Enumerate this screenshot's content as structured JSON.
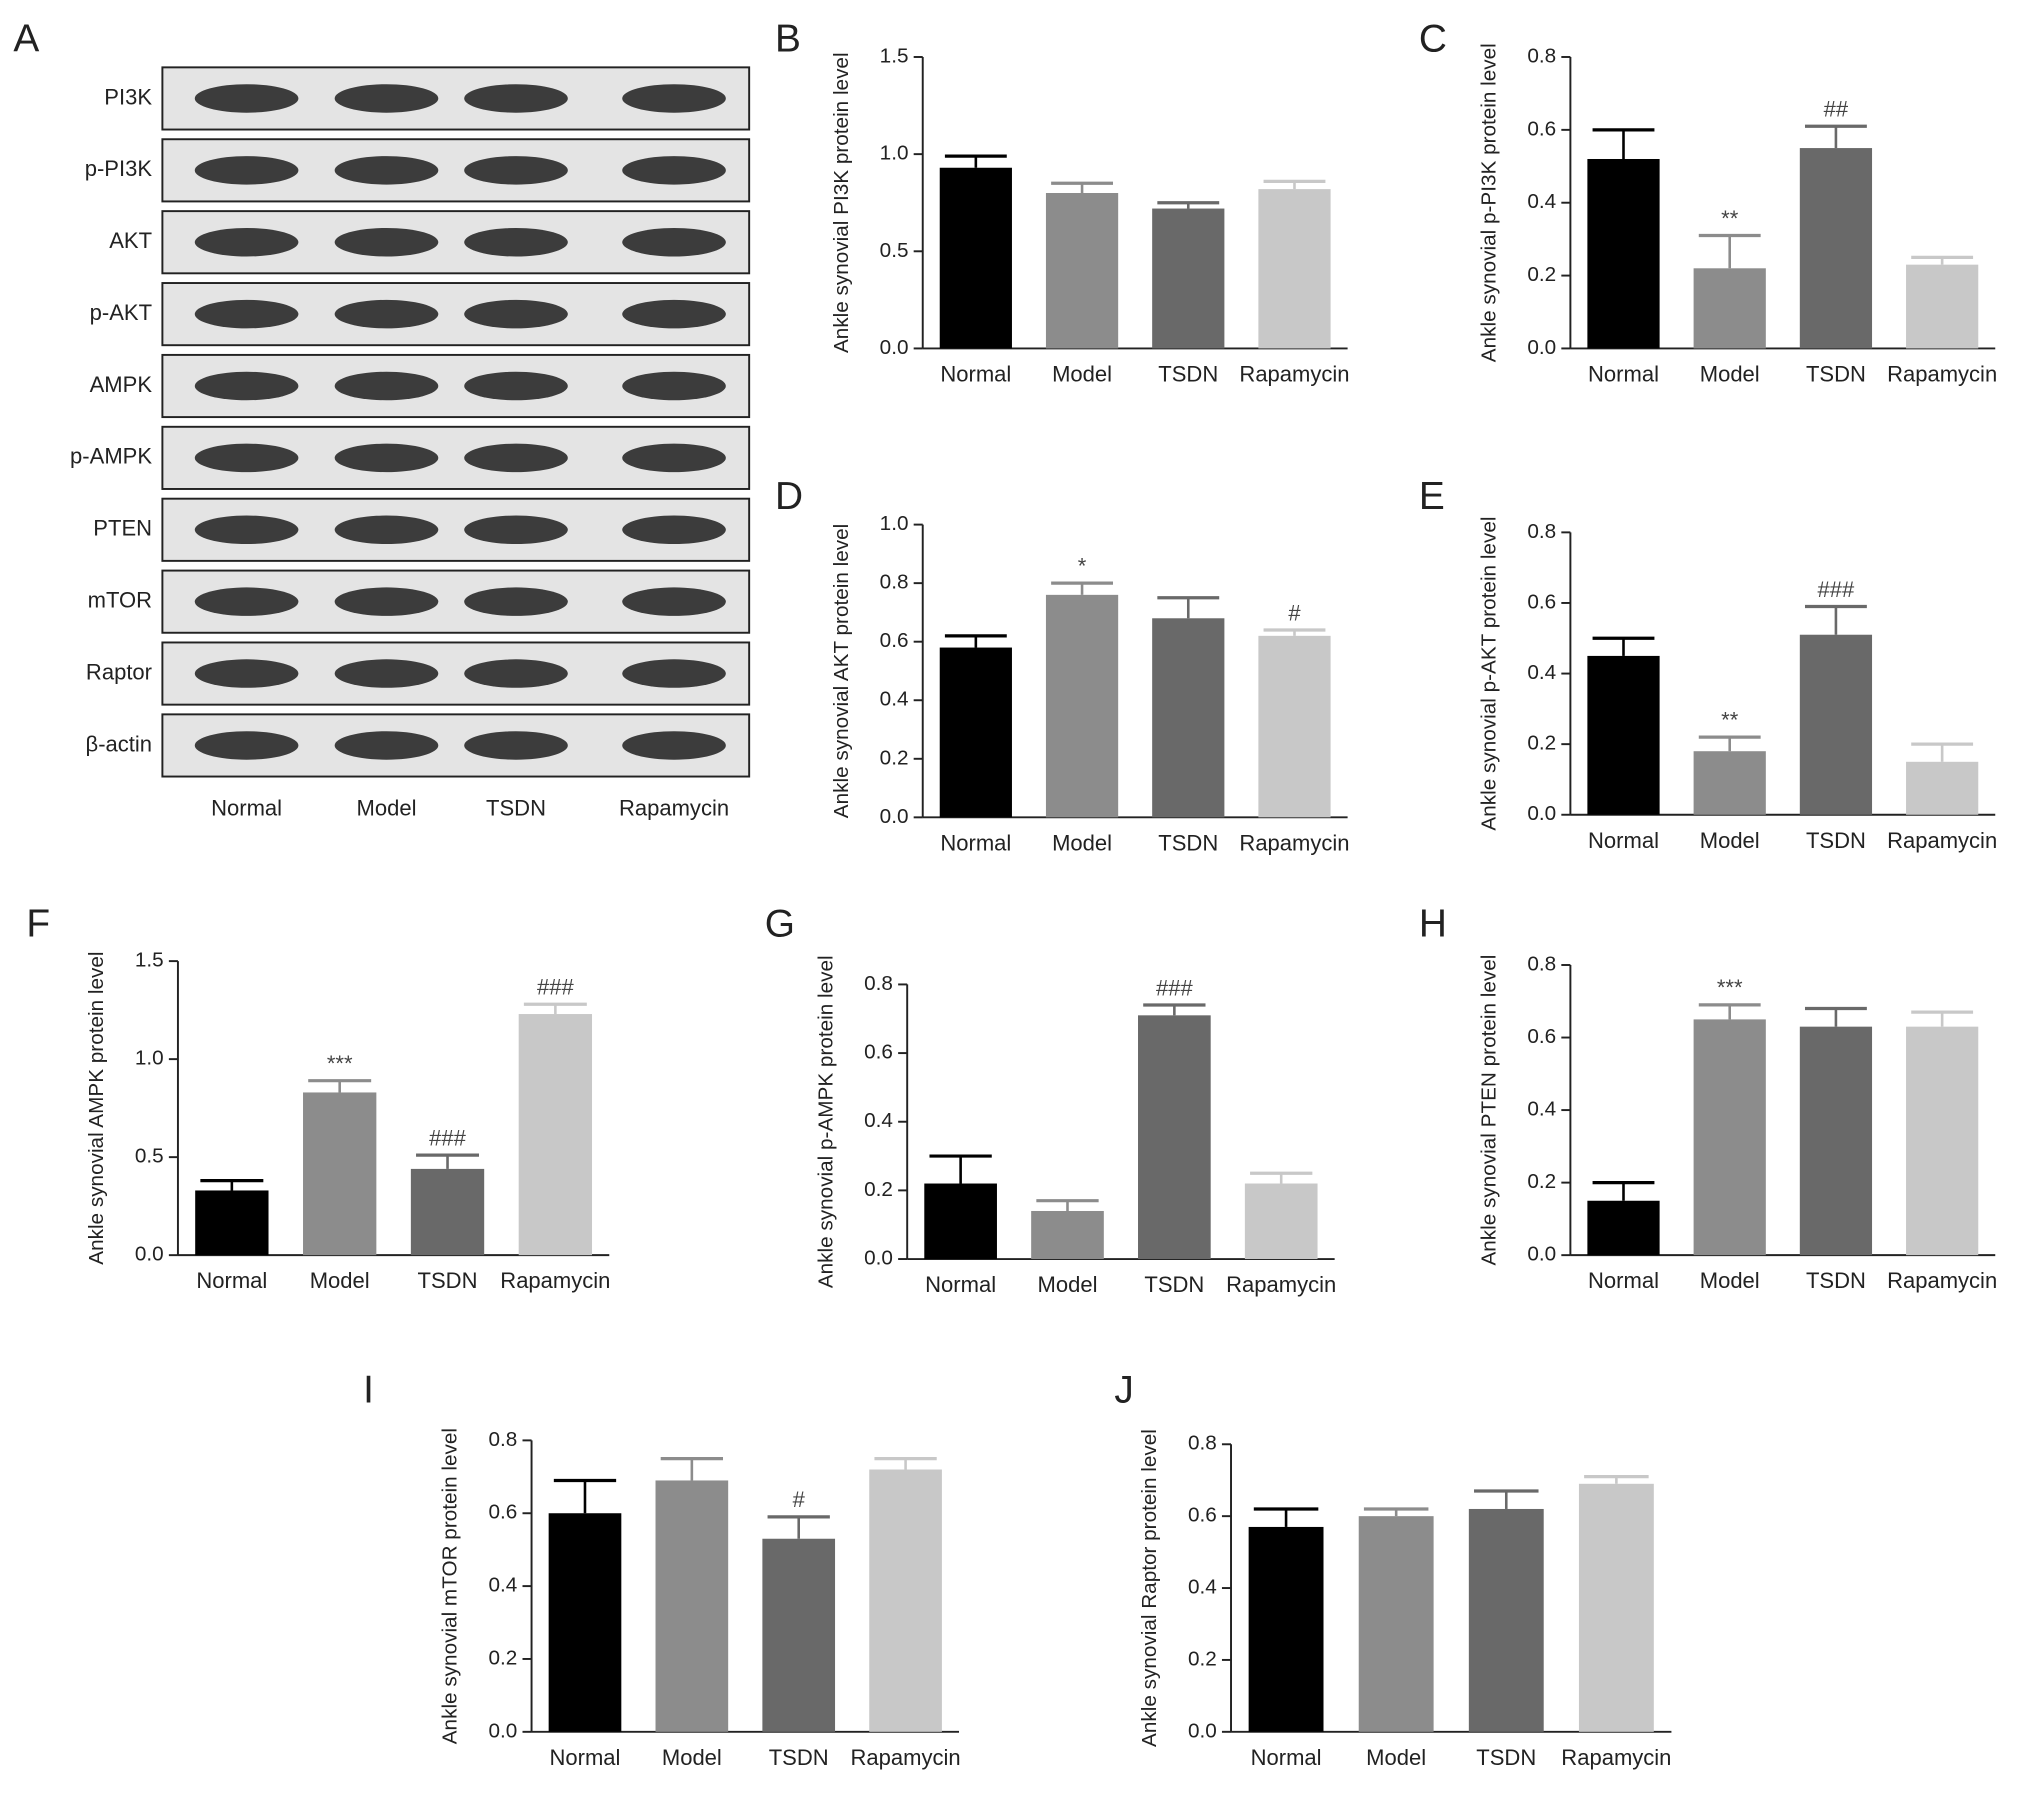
{
  "blot": {
    "panel_label": "A",
    "rows": [
      "PI3K",
      "p-PI3K",
      "AKT",
      "p-AKT",
      "AMPK",
      "p-AMPK",
      "PTEN",
      "mTOR",
      "Raptor",
      "β-actin"
    ],
    "columns": [
      "Normal",
      "Model",
      "TSDN",
      "Rapamycin"
    ]
  },
  "chart_data": [
    {
      "type": "bar",
      "panel_label": "B",
      "ylabel": "Ankle synovial PI3K protein level",
      "categories": [
        "Normal",
        "Model",
        "TSDN",
        "Rapamycin"
      ],
      "colors": [
        "#000000",
        "#8c8c8c",
        "#696969",
        "#c8c8c8"
      ],
      "values": [
        0.93,
        0.8,
        0.72,
        0.82
      ],
      "errors": [
        0.06,
        0.05,
        0.03,
        0.04
      ],
      "annotations": [
        null,
        null,
        null,
        null
      ],
      "ylim": [
        0,
        1.5
      ],
      "yticks": [
        {
          "value": 0,
          "label": "0.0"
        },
        0.5,
        {
          "value": 1,
          "label": "1.0"
        },
        1.5
      ]
    },
    {
      "type": "bar",
      "panel_label": "C",
      "ylabel": "Ankle synovial p-PI3K protein level",
      "categories": [
        "Normal",
        "Model",
        "TSDN",
        "Rapamycin"
      ],
      "colors": [
        "#000000",
        "#8c8c8c",
        "#696969",
        "#c8c8c8"
      ],
      "values": [
        0.52,
        0.22,
        0.55,
        0.23
      ],
      "errors": [
        0.08,
        0.09,
        0.06,
        0.02
      ],
      "annotations": [
        null,
        "**",
        "##",
        null
      ],
      "ylim": [
        0,
        0.8
      ],
      "yticks": [
        {
          "value": 0,
          "label": "0.0"
        },
        0.2,
        0.4,
        0.6,
        0.8
      ]
    },
    {
      "type": "bar",
      "panel_label": "D",
      "ylabel": "Ankle synovial AKT protein level",
      "categories": [
        "Normal",
        "Model",
        "TSDN",
        "Rapamycin"
      ],
      "colors": [
        "#000000",
        "#8c8c8c",
        "#696969",
        "#c8c8c8"
      ],
      "values": [
        0.58,
        0.76,
        0.68,
        0.62
      ],
      "errors": [
        0.04,
        0.04,
        0.07,
        0.02
      ],
      "annotations": [
        null,
        "*",
        null,
        "#"
      ],
      "ylim": [
        0,
        1
      ],
      "yticks": [
        {
          "value": 0,
          "label": "0.0"
        },
        0.2,
        0.4,
        0.6,
        0.8,
        {
          "value": 1,
          "label": "1.0"
        }
      ]
    },
    {
      "type": "bar",
      "panel_label": "E",
      "ylabel": "Ankle synovial p-AKT protein level",
      "categories": [
        "Normal",
        "Model",
        "TSDN",
        "Rapamycin"
      ],
      "colors": [
        "#000000",
        "#8c8c8c",
        "#696969",
        "#c8c8c8"
      ],
      "values": [
        0.45,
        0.18,
        0.51,
        0.15
      ],
      "errors": [
        0.05,
        0.04,
        0.08,
        0.05
      ],
      "annotations": [
        null,
        "**",
        "###",
        null
      ],
      "ylim": [
        0,
        0.8
      ],
      "yticks": [
        {
          "value": 0,
          "label": "0.0"
        },
        0.2,
        0.4,
        0.6,
        0.8
      ]
    },
    {
      "type": "bar",
      "panel_label": "F",
      "ylabel": "Ankle synovial AMPK protein level",
      "categories": [
        "Normal",
        "Model",
        "TSDN",
        "Rapamycin"
      ],
      "colors": [
        "#000000",
        "#8c8c8c",
        "#696969",
        "#c8c8c8"
      ],
      "values": [
        0.33,
        0.83,
        0.44,
        1.23
      ],
      "errors": [
        0.05,
        0.06,
        0.07,
        0.05
      ],
      "annotations": [
        null,
        "***",
        "###",
        "###"
      ],
      "ylim": [
        0,
        1.5
      ],
      "yticks": [
        {
          "value": 0,
          "label": "0.0"
        },
        0.5,
        {
          "value": 1,
          "label": "1.0"
        },
        1.5
      ]
    },
    {
      "type": "bar",
      "panel_label": "G",
      "ylabel": "Ankle synovial p-AMPK protein level",
      "categories": [
        "Normal",
        "Model",
        "TSDN",
        "Rapamycin"
      ],
      "colors": [
        "#000000",
        "#8c8c8c",
        "#696969",
        "#c8c8c8"
      ],
      "values": [
        0.22,
        0.14,
        0.71,
        0.22
      ],
      "errors": [
        0.08,
        0.03,
        0.03,
        0.03
      ],
      "annotations": [
        null,
        null,
        "###",
        null
      ],
      "ylim": [
        0,
        0.8
      ],
      "yticks": [
        {
          "value": 0,
          "label": "0.0"
        },
        0.2,
        0.4,
        0.6,
        0.8
      ]
    },
    {
      "type": "bar",
      "panel_label": "H",
      "ylabel": "Ankle synovial PTEN protein level",
      "categories": [
        "Normal",
        "Model",
        "TSDN",
        "Rapamycin"
      ],
      "colors": [
        "#000000",
        "#8c8c8c",
        "#696969",
        "#c8c8c8"
      ],
      "values": [
        0.15,
        0.65,
        0.63,
        0.63
      ],
      "errors": [
        0.05,
        0.04,
        0.05,
        0.04
      ],
      "annotations": [
        null,
        "***",
        null,
        null
      ],
      "ylim": [
        0,
        0.8
      ],
      "yticks": [
        {
          "value": 0,
          "label": "0.0"
        },
        0.2,
        0.4,
        0.6,
        0.8
      ]
    },
    {
      "type": "bar",
      "panel_label": "I",
      "ylabel": "Ankle synovial mTOR protein level",
      "categories": [
        "Normal",
        "Model",
        "TSDN",
        "Rapamycin"
      ],
      "colors": [
        "#000000",
        "#8c8c8c",
        "#696969",
        "#c8c8c8"
      ],
      "values": [
        0.6,
        0.69,
        0.53,
        0.72
      ],
      "errors": [
        0.09,
        0.06,
        0.06,
        0.03
      ],
      "annotations": [
        null,
        null,
        "#",
        null
      ],
      "ylim": [
        0,
        0.8
      ],
      "yticks": [
        {
          "value": 0,
          "label": "0.0"
        },
        0.2,
        0.4,
        0.6,
        0.8
      ]
    },
    {
      "type": "bar",
      "panel_label": "J",
      "ylabel": "Ankle synovial Raptor protein level",
      "categories": [
        "Normal",
        "Model",
        "TSDN",
        "Rapamycin"
      ],
      "colors": [
        "#000000",
        "#8c8c8c",
        "#696969",
        "#c8c8c8"
      ],
      "values": [
        0.57,
        0.6,
        0.62,
        0.69
      ],
      "errors": [
        0.05,
        0.02,
        0.05,
        0.02
      ],
      "annotations": [
        null,
        null,
        null,
        null
      ],
      "ylim": [
        0,
        0.8
      ],
      "yticks": [
        {
          "value": 0,
          "label": "0.0"
        },
        0.2,
        0.4,
        0.6,
        0.8
      ]
    }
  ]
}
